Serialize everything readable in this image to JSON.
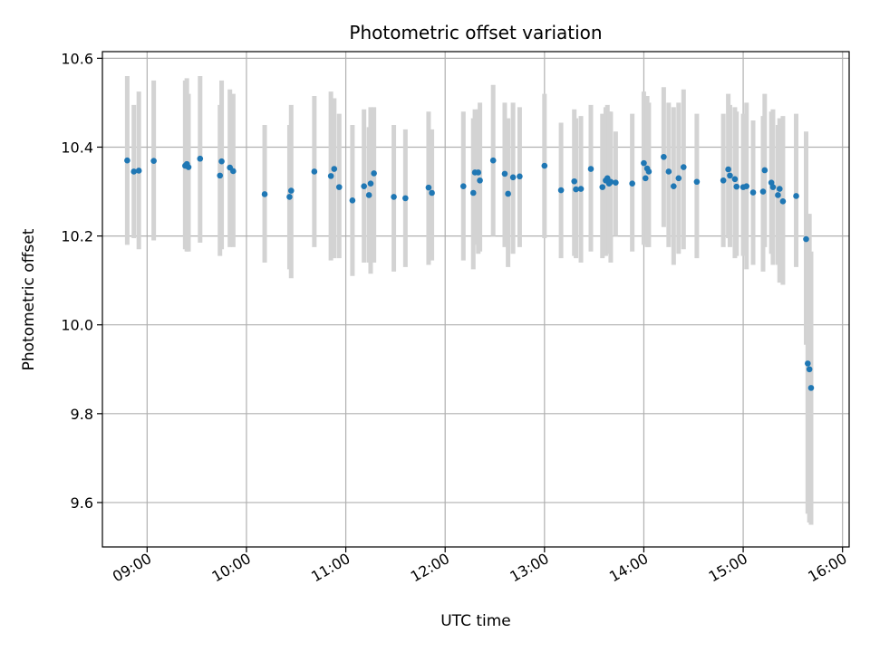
{
  "chart_data": {
    "type": "scatter",
    "title": "Photometric offset variation",
    "xlabel": "UTC time",
    "ylabel": "Photometric offset",
    "x_tick_labels": [
      "09:00",
      "10:00",
      "11:00",
      "12:00",
      "13:00",
      "14:00",
      "15:00",
      "16:00"
    ],
    "x_tick_minutes": [
      540,
      600,
      660,
      720,
      780,
      840,
      900,
      960
    ],
    "y_tick_labels": [
      "9.6",
      "9.8",
      "10.0",
      "10.2",
      "10.4",
      "10.6"
    ],
    "y_tick_values": [
      9.6,
      9.8,
      10.0,
      10.2,
      10.4,
      10.6
    ],
    "xlim": [
      "08:33",
      "16:04"
    ],
    "ylim": [
      9.5,
      10.615
    ],
    "grid": true,
    "colors": {
      "point": "#1f77b4",
      "errorbar": "#d3d3d3",
      "grid": "#b0b0b0"
    },
    "x": [
      "08:48",
      "08:52",
      "08:55",
      "09:04",
      "09:23",
      "09:24",
      "09:25",
      "09:32",
      "09:44",
      "09:45",
      "09:50",
      "09:52",
      "10:11",
      "10:26",
      "10:27",
      "10:41",
      "10:51",
      "10:53",
      "10:56",
      "11:04",
      "11:11",
      "11:14",
      "11:15",
      "11:17",
      "11:29",
      "11:36",
      "11:50",
      "11:52",
      "12:11",
      "12:17",
      "12:18",
      "12:20",
      "12:21",
      "12:29",
      "12:36",
      "12:38",
      "12:41",
      "12:45",
      "13:00",
      "13:10",
      "13:18",
      "13:19",
      "13:22",
      "13:28",
      "13:35",
      "13:37",
      "13:38",
      "13:39",
      "13:40",
      "13:43",
      "13:53",
      "14:00",
      "14:01",
      "14:02",
      "14:03",
      "14:12",
      "14:15",
      "14:18",
      "14:21",
      "14:24",
      "14:32",
      "14:48",
      "14:51",
      "14:52",
      "14:55",
      "14:56",
      "15:00",
      "15:02",
      "15:06",
      "15:12",
      "15:13",
      "15:17",
      "15:18",
      "15:21",
      "15:22",
      "15:24",
      "15:32",
      "15:38",
      "15:39",
      "15:40"
    ],
    "y": [
      10.37,
      10.345,
      10.347,
      10.369,
      10.358,
      10.362,
      10.355,
      10.374,
      10.336,
      10.368,
      10.354,
      10.346,
      10.294,
      10.288,
      10.302,
      10.345,
      10.335,
      10.351,
      10.31,
      10.28,
      10.312,
      10.292,
      10.318,
      10.341,
      10.288,
      10.285,
      10.309,
      10.297,
      10.312,
      10.297,
      10.343,
      10.343,
      10.325,
      10.37,
      10.34,
      10.295,
      10.332,
      10.334,
      10.358,
      10.303,
      10.323,
      10.305,
      10.306,
      10.351,
      10.31,
      10.325,
      10.33,
      10.318,
      10.322,
      10.32,
      10.318,
      10.364,
      10.33,
      10.352,
      10.345,
      10.378,
      10.345,
      10.312,
      10.33,
      10.355,
      10.322,
      10.325,
      10.35,
      10.336,
      10.328,
      10.311,
      10.31,
      10.312,
      10.298,
      10.3,
      10.348,
      10.32,
      10.31,
      10.292,
      10.306,
      10.278,
      10.29,
      10.193,
      9.913,
      9.9
    ],
    "err_low": [
      10.18,
      10.195,
      10.17,
      10.19,
      10.17,
      10.165,
      10.165,
      10.185,
      10.155,
      10.17,
      10.175,
      10.175,
      10.14,
      10.125,
      10.105,
      10.175,
      10.145,
      10.15,
      10.15,
      10.11,
      10.14,
      10.14,
      10.115,
      10.14,
      10.12,
      10.13,
      10.135,
      10.145,
      10.145,
      10.125,
      10.18,
      10.16,
      10.165,
      10.2,
      10.175,
      10.13,
      10.16,
      10.175,
      10.195,
      10.15,
      10.155,
      10.15,
      10.14,
      10.165,
      10.15,
      10.155,
      10.16,
      10.16,
      10.14,
      10.2,
      10.165,
      10.18,
      10.185,
      10.175,
      10.175,
      10.22,
      10.175,
      10.135,
      10.16,
      10.17,
      10.15,
      10.175,
      10.195,
      10.175,
      10.15,
      10.155,
      10.155,
      10.125,
      10.135,
      10.12,
      10.175,
      10.16,
      10.135,
      10.135,
      10.095,
      10.09,
      10.13,
      9.955,
      9.575,
      9.555
    ],
    "err_high": [
      10.56,
      10.495,
      10.525,
      10.55,
      10.55,
      10.555,
      10.52,
      10.56,
      10.495,
      10.55,
      10.53,
      10.52,
      10.45,
      10.45,
      10.495,
      10.515,
      10.525,
      10.51,
      10.475,
      10.45,
      10.485,
      10.445,
      10.49,
      10.49,
      10.45,
      10.44,
      10.48,
      10.44,
      10.48,
      10.465,
      10.485,
      10.485,
      10.5,
      10.54,
      10.5,
      10.465,
      10.5,
      10.49,
      10.52,
      10.455,
      10.485,
      10.465,
      10.47,
      10.495,
      10.475,
      10.49,
      10.495,
      10.48,
      10.48,
      10.435,
      10.475,
      10.525,
      10.48,
      10.515,
      10.5,
      10.535,
      10.5,
      10.49,
      10.5,
      10.53,
      10.475,
      10.475,
      10.52,
      10.495,
      10.49,
      10.48,
      10.475,
      10.5,
      10.46,
      10.47,
      10.52,
      10.48,
      10.485,
      10.45,
      10.465,
      10.47,
      10.475,
      10.435,
      10.25,
      10.25
    ]
  },
  "extra_point": {
    "x": "15:41",
    "y": 9.858,
    "err_low": 9.55,
    "err_high": 10.165
  }
}
